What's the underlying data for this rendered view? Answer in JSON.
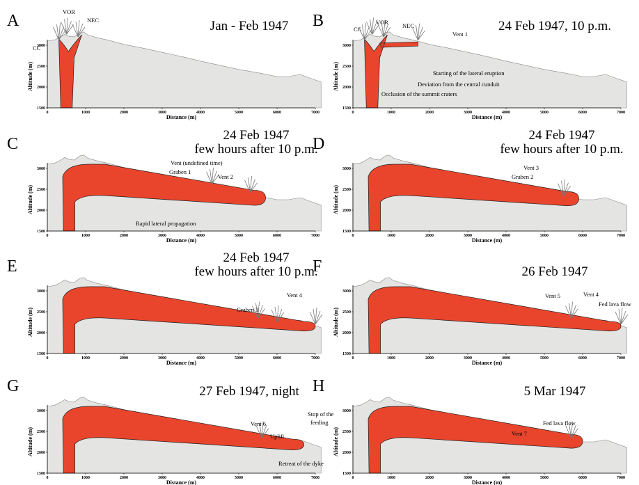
{
  "axes": {
    "x_label": "Distance (m)",
    "y_label": "Altitude (m)",
    "x_ticks": [
      "0",
      "1000",
      "2000",
      "3000",
      "4000",
      "5000",
      "6000",
      "7000"
    ],
    "y_ticks": [
      "1500",
      "2000",
      "2500",
      "3000"
    ]
  },
  "panels": [
    {
      "letter": "A",
      "title": [
        "Jan - Feb 1947"
      ],
      "annotations": [
        "CC",
        "VOR",
        "NEC"
      ]
    },
    {
      "letter": "B",
      "title": [
        "24 Feb 1947, 10 p.m."
      ],
      "annotations": [
        "CC",
        "VOR",
        "NEC",
        "Vent 1",
        "Starting of the lateral eruption",
        "Deviation from the central cunduit",
        "Occlusion of the summit craters"
      ]
    },
    {
      "letter": "C",
      "title": [
        "24 Feb 1947",
        "few hours after 10 p.m."
      ],
      "annotations": [
        "Vent (undefined time)",
        "Graben 1",
        "Vent 2",
        "Rapid lateral propagation"
      ]
    },
    {
      "letter": "D",
      "title": [
        "24 Feb 1947",
        "few hours after 10 p.m."
      ],
      "annotations": [
        "Vent 3",
        "Graben 2"
      ]
    },
    {
      "letter": "E",
      "title": [
        "24 Feb 1947",
        "few hours after 10 p.m."
      ],
      "annotations": [
        "Graben 3",
        "Vent 4"
      ]
    },
    {
      "letter": "F",
      "title": [
        "26 Feb 1947"
      ],
      "annotations": [
        "Vent 5",
        "Vent 4",
        "Fed lava flow"
      ]
    },
    {
      "letter": "G",
      "title": [
        "27 Feb 1947, night"
      ],
      "annotations": [
        "Vent 6",
        "Uplift",
        "Stop of the",
        "feeding",
        "Retreat of the dyke"
      ]
    },
    {
      "letter": "H",
      "title": [
        "5 Mar 1947"
      ],
      "annotations": [
        "Vent 7",
        "Fed lava flow"
      ]
    }
  ]
}
